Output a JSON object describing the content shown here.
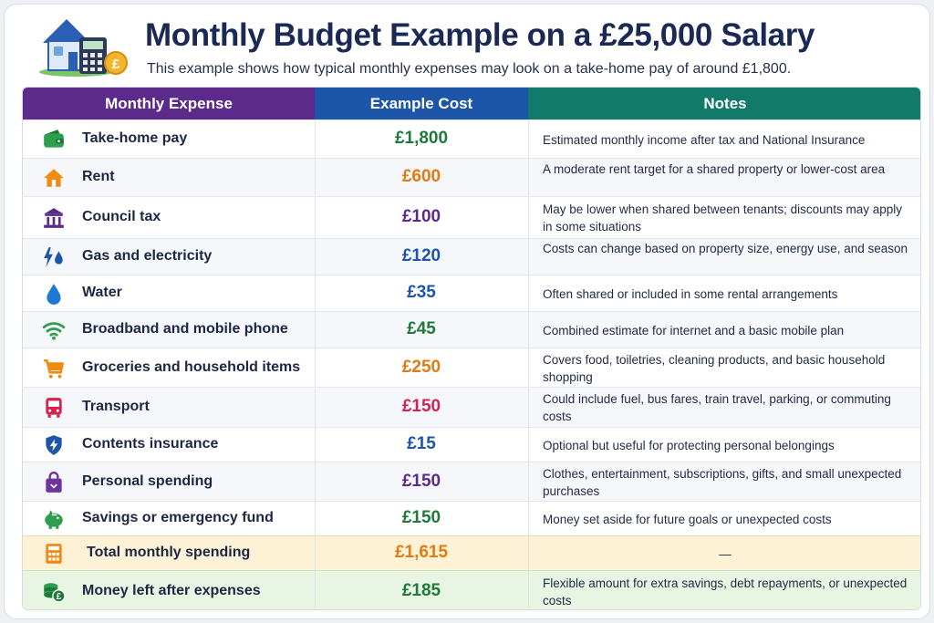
{
  "header": {
    "title": "Monthly Budget Example on a £25,000 Salary",
    "subtitle": "This example shows how typical monthly expenses may look on a take-home pay of around £1,800.",
    "logo_icon": "house-calculator-coin-icon"
  },
  "columns": [
    "Monthly Expense",
    "Example Cost",
    "Notes"
  ],
  "colors": {
    "green": "#1e7a3a",
    "orange": "#e07b12",
    "purple": "#5c2a8a",
    "blue": "#1d56a8",
    "red": "#d4234f"
  },
  "rows": [
    {
      "icon": "wallet-icon",
      "label": "Take-home pay",
      "cost": "£1,800",
      "note": "Estimated monthly income after tax and National Insurance",
      "color": "#1e7a3a"
    },
    {
      "icon": "house-icon",
      "label": "Rent",
      "cost": "£600",
      "note": "A moderate rent target for a shared property or lower-cost area",
      "color": "#e07b12"
    },
    {
      "icon": "council-building-icon",
      "label": "Council tax",
      "cost": "£100",
      "note": "May be lower when shared between tenants; discounts may apply in some situations",
      "color": "#5c2a8a"
    },
    {
      "icon": "bolt-drop-icon",
      "label": "Gas and electricity",
      "cost": "£120",
      "note": "Costs can change based on property size, energy use, and season",
      "color": "#1d56a8"
    },
    {
      "icon": "water-drop-icon",
      "label": "Water",
      "cost": "£35",
      "note": "Often shared or included in some rental arrangements",
      "color": "#1d56a8"
    },
    {
      "icon": "wifi-icon",
      "label": "Broadband and mobile phone",
      "cost": "£45",
      "note": "Combined estimate for internet and a basic mobile plan",
      "color": "#1e7a3a"
    },
    {
      "icon": "shopping-cart-icon",
      "label": "Groceries and household items",
      "cost": "£250",
      "note": "Covers food, toiletries, cleaning products, and basic household shopping",
      "color": "#e07b12"
    },
    {
      "icon": "bus-icon",
      "label": "Transport",
      "cost": "£150",
      "note": "Could include fuel, bus fares, train travel, parking, or commuting costs",
      "color": "#d4234f"
    },
    {
      "icon": "shield-bolt-icon",
      "label": "Contents insurance",
      "cost": "£15",
      "note": "Optional but useful for protecting personal belongings",
      "color": "#1d56a8"
    },
    {
      "icon": "shopping-bag-icon",
      "label": "Personal spending",
      "cost": "£150",
      "note": "Clothes, entertainment, subscriptions, gifts, and small unexpected purchases",
      "color": "#5c2a8a"
    },
    {
      "icon": "piggy-bank-icon",
      "label": "Savings or emergency fund",
      "cost": "£150",
      "note": "Money set aside for future goals or unexpected costs",
      "color": "#1e7a3a"
    }
  ],
  "total": {
    "icon": "calculator-icon",
    "label": "Total monthly spending",
    "cost": "£1,615",
    "note": "—",
    "color": "#e07b12"
  },
  "remaining": {
    "icon": "coins-pound-icon",
    "label": "Money left after expenses",
    "cost": "£185",
    "note": "Flexible amount for extra savings, debt repayments, or unexpected costs",
    "color": "#1e7a3a"
  }
}
